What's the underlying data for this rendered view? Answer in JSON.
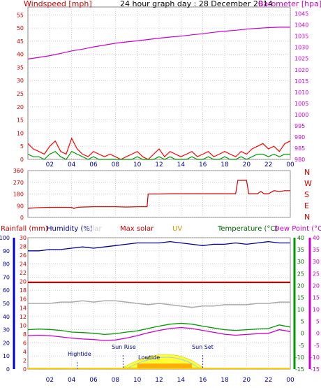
{
  "header": {
    "windspeed_label": "Windspeed [mph]",
    "title": "24 hour graph day : 28 December 2014",
    "barometer_label": "Barometer [hpa]"
  },
  "colors": {
    "wind_axis": "#cc0000",
    "barometer": "#cc00cc",
    "direction": "#cc0000",
    "rainfall": "#cc0000",
    "humidity": "#000099",
    "solar": "#cc0000",
    "uv": "#cc9900",
    "temperature": "#006600",
    "dewpoint": "#cc00cc",
    "gust": "#ff0000",
    "avg_wind": "#009900",
    "grid": "#bbbbbb"
  },
  "chart_data": [
    {
      "type": "line",
      "name": "wind-barometer",
      "x_ticks": [
        "02",
        "04",
        "06",
        "08",
        "10",
        "12",
        "14",
        "16",
        "18",
        "20",
        "22",
        "00"
      ],
      "y_left_ticks": [
        0,
        5,
        10,
        15,
        20,
        25,
        30,
        35,
        40,
        45,
        50,
        55
      ],
      "ylim_left": [
        0,
        58
      ],
      "y_right_ticks": [
        980,
        985,
        990,
        995,
        1000,
        1005,
        1010,
        1015,
        1020,
        1025,
        1030,
        1035,
        1040,
        1045
      ],
      "ylim_right": [
        980,
        1048
      ],
      "series": [
        {
          "key": "barometer",
          "x": [
            0,
            1,
            2,
            3,
            4,
            5,
            6,
            7,
            8,
            9,
            10,
            11,
            12,
            13,
            14,
            15,
            16,
            17,
            18,
            19,
            20,
            21,
            22,
            23,
            24
          ],
          "y": [
            1024.8,
            1025.5,
            1026.3,
            1027.3,
            1028.4,
            1029.2,
            1030.2,
            1031.0,
            1031.8,
            1032.4,
            1032.9,
            1033.5,
            1034.1,
            1034.6,
            1035.0,
            1035.6,
            1036.1,
            1036.7,
            1037.2,
            1037.6,
            1038.1,
            1038.5,
            1038.8,
            1039.0,
            1039.0
          ]
        },
        {
          "key": "gust",
          "x": [
            0,
            0.5,
            1,
            1.5,
            2,
            2.5,
            3,
            3.5,
            4,
            4.5,
            5,
            5.5,
            6,
            6.5,
            7,
            7.5,
            8,
            8.5,
            9,
            9.5,
            10,
            10.5,
            11,
            11.5,
            12,
            12.5,
            13,
            13.5,
            14,
            14.5,
            15,
            15.5,
            16,
            16.5,
            17,
            17.5,
            18,
            18.5,
            19,
            19.5,
            20,
            20.5,
            21,
            21.5,
            22,
            22.5,
            23,
            23.5,
            24
          ],
          "y": [
            6,
            4,
            3,
            2,
            5,
            7,
            3,
            2,
            8,
            4,
            2,
            1,
            3,
            2,
            1,
            2,
            1,
            0,
            1,
            2,
            3,
            1,
            0,
            2,
            4,
            1,
            3,
            2,
            1,
            2,
            3,
            1,
            2,
            3,
            1,
            2,
            3,
            2,
            1,
            3,
            2,
            4,
            5,
            6,
            4,
            5,
            3,
            6,
            7
          ]
        },
        {
          "key": "avg_wind",
          "x": [
            0,
            0.5,
            1,
            1.5,
            2,
            2.5,
            3,
            3.5,
            4,
            4.5,
            5,
            5.5,
            6,
            6.5,
            7,
            7.5,
            8,
            8.5,
            9,
            9.5,
            10,
            10.5,
            11,
            11.5,
            12,
            12.5,
            13,
            13.5,
            14,
            14.5,
            15,
            15.5,
            16,
            16.5,
            17,
            17.5,
            18,
            18.5,
            19,
            19.5,
            20,
            20.5,
            21,
            21.5,
            22,
            22.5,
            23,
            23.5,
            24
          ],
          "y": [
            2,
            1,
            1,
            0,
            2,
            3,
            1,
            0,
            3,
            2,
            1,
            0,
            1,
            0,
            0,
            0,
            0,
            0,
            0,
            0,
            1,
            0,
            0,
            0,
            1,
            0,
            1,
            0,
            0,
            0,
            1,
            0,
            0,
            1,
            0,
            0,
            1,
            0,
            0,
            1,
            0,
            1,
            2,
            2,
            1,
            2,
            1,
            2,
            2
          ]
        }
      ]
    },
    {
      "type": "line",
      "name": "wind-direction",
      "y_left_ticks": [
        0,
        90,
        180,
        270,
        360
      ],
      "ylim": [
        0,
        360
      ],
      "direction_labels": [
        "N",
        "W",
        "S",
        "E",
        "N"
      ],
      "series": [
        {
          "key": "direction",
          "x": [
            0,
            1,
            2,
            3,
            4,
            4.2,
            4.5,
            5,
            6,
            7,
            8,
            9,
            10,
            10.9,
            11,
            12,
            13,
            14,
            15,
            16,
            17,
            18,
            19,
            19.2,
            19.5,
            20,
            20.2,
            20.5,
            21,
            21.3,
            21.6,
            22,
            22.5,
            23,
            23.5,
            24
          ],
          "y": [
            70,
            75,
            78,
            78,
            78,
            68,
            78,
            80,
            82,
            82,
            82,
            80,
            82,
            82,
            180,
            180,
            182,
            182,
            182,
            182,
            182,
            182,
            182,
            285,
            285,
            285,
            182,
            182,
            182,
            200,
            182,
            182,
            205,
            200,
            205,
            205
          ]
        }
      ]
    },
    {
      "type": "line",
      "name": "weather-multi",
      "legend": [
        "Rainfall (mm)",
        "Humidity (%)",
        "Solar",
        "Max solar",
        "UV",
        "Temperature (°C)",
        "Dew Point (°C)"
      ],
      "y_left_ticks": [
        0,
        10,
        20,
        30,
        40,
        50,
        60,
        70,
        80,
        90,
        100
      ],
      "y_mid_ticks": [
        0,
        2,
        4,
        6,
        8,
        10,
        12,
        14,
        16,
        18,
        20,
        22,
        24,
        26,
        28,
        30
      ],
      "y_right_ticks": [
        -15,
        -10,
        -5,
        0,
        5,
        10,
        15,
        20,
        25,
        30,
        35,
        40
      ],
      "ylim_right": [
        -15,
        40
      ],
      "annotations": [
        "Hightide",
        "Sun Rise",
        "Lowtide",
        "Sun Set"
      ],
      "series": [
        {
          "key": "humidity",
          "x": [
            0,
            1,
            2,
            3,
            4,
            5,
            6,
            7,
            8,
            9,
            10,
            11,
            12,
            13,
            14,
            15,
            16,
            17,
            18,
            19,
            20,
            21,
            22,
            23,
            24
          ],
          "y": [
            90,
            90,
            91,
            91,
            92,
            93,
            92,
            93,
            94,
            95,
            96,
            96,
            96,
            97,
            96,
            95,
            94,
            95,
            95,
            96,
            95,
            96,
            97,
            96,
            96
          ]
        },
        {
          "key": "rain_max",
          "x": [
            0,
            24
          ],
          "y": [
            66,
            66
          ]
        },
        {
          "key": "solar_flat",
          "x": [
            0,
            1,
            2,
            3,
            4,
            5,
            6,
            7,
            8,
            9,
            10,
            11,
            12,
            13,
            14,
            15,
            16,
            17,
            18,
            19,
            20,
            21,
            22,
            23,
            24
          ],
          "y": [
            50,
            50,
            50,
            51,
            51,
            52,
            51,
            52,
            52,
            51,
            50,
            49,
            50,
            49,
            48,
            47,
            48,
            48,
            49,
            49,
            49,
            50,
            50,
            51,
            51
          ]
        },
        {
          "key": "temperature",
          "x": [
            0,
            1,
            2,
            3,
            4,
            5,
            6,
            7,
            8,
            9,
            10,
            11,
            12,
            13,
            14,
            15,
            16,
            17,
            18,
            19,
            20,
            21,
            22,
            23,
            24
          ],
          "y": [
            1.5,
            1.8,
            1.6,
            1.2,
            0.5,
            0.3,
            0.0,
            -0.5,
            -0.2,
            0.5,
            1.0,
            2.0,
            3.0,
            3.8,
            4.2,
            3.8,
            3.0,
            2.2,
            1.5,
            1.2,
            1.5,
            1.8,
            2.0,
            3.5,
            2.6
          ]
        },
        {
          "key": "dewpoint",
          "x": [
            0,
            1,
            2,
            3,
            4,
            5,
            6,
            7,
            8,
            9,
            10,
            11,
            12,
            13,
            14,
            15,
            16,
            17,
            18,
            19,
            20,
            21,
            22,
            23,
            24
          ],
          "y": [
            -1.0,
            -0.8,
            -1.0,
            -1.5,
            -2.0,
            -2.4,
            -2.6,
            -3.0,
            -2.8,
            -2.0,
            -1.0,
            0.2,
            1.2,
            2.0,
            2.4,
            2.0,
            1.2,
            0.4,
            -0.4,
            -0.8,
            -0.5,
            -0.2,
            0.0,
            1.5,
            0.7
          ]
        }
      ]
    }
  ],
  "axes_text": {
    "rainfall_label": "Rainfall (mm)",
    "humidity_label": "Humidity (%)",
    "solar_label": "Solar",
    "max_solar_label": "Max solar",
    "uv_label": "UV",
    "temperature_label": "Temperature (°C)",
    "dewpoint_label": "Dew Point (°C)"
  },
  "annotation_text": {
    "hightide": "Hightide",
    "sunrise": "Sun Rise",
    "lowtide": "Lowtide",
    "sunset": "Sun Set"
  }
}
